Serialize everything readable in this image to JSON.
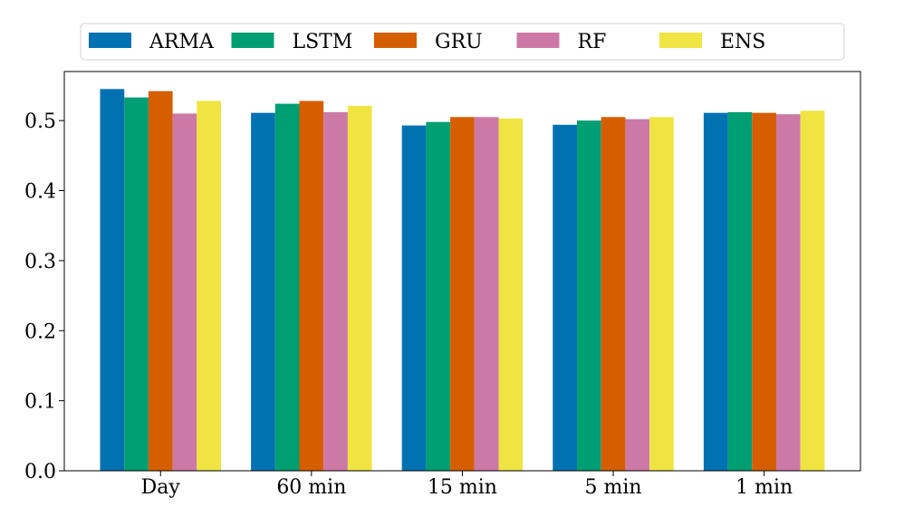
{
  "chart_data": {
    "type": "bar",
    "categories": [
      "Day",
      "60 min",
      "15 min",
      "5 min",
      "1 min"
    ],
    "series": [
      {
        "name": "ARMA",
        "color": "#0072B2",
        "values": [
          0.545,
          0.511,
          0.493,
          0.494,
          0.511
        ]
      },
      {
        "name": "LSTM",
        "color": "#009E73",
        "values": [
          0.533,
          0.524,
          0.498,
          0.5,
          0.512
        ]
      },
      {
        "name": "GRU",
        "color": "#D55E00",
        "values": [
          0.542,
          0.528,
          0.505,
          0.505,
          0.511
        ]
      },
      {
        "name": "RF",
        "color": "#CC79A7",
        "values": [
          0.51,
          0.512,
          0.505,
          0.502,
          0.509
        ]
      },
      {
        "name": "ENS",
        "color": "#F0E442",
        "values": [
          0.528,
          0.521,
          0.503,
          0.505,
          0.514
        ]
      }
    ],
    "yticks": [
      "0.0",
      "0.1",
      "0.2",
      "0.3",
      "0.4",
      "0.5"
    ],
    "ylim": [
      0,
      0.57
    ],
    "xlabel": "",
    "ylabel": "",
    "grid": false,
    "legend_position": "top"
  }
}
